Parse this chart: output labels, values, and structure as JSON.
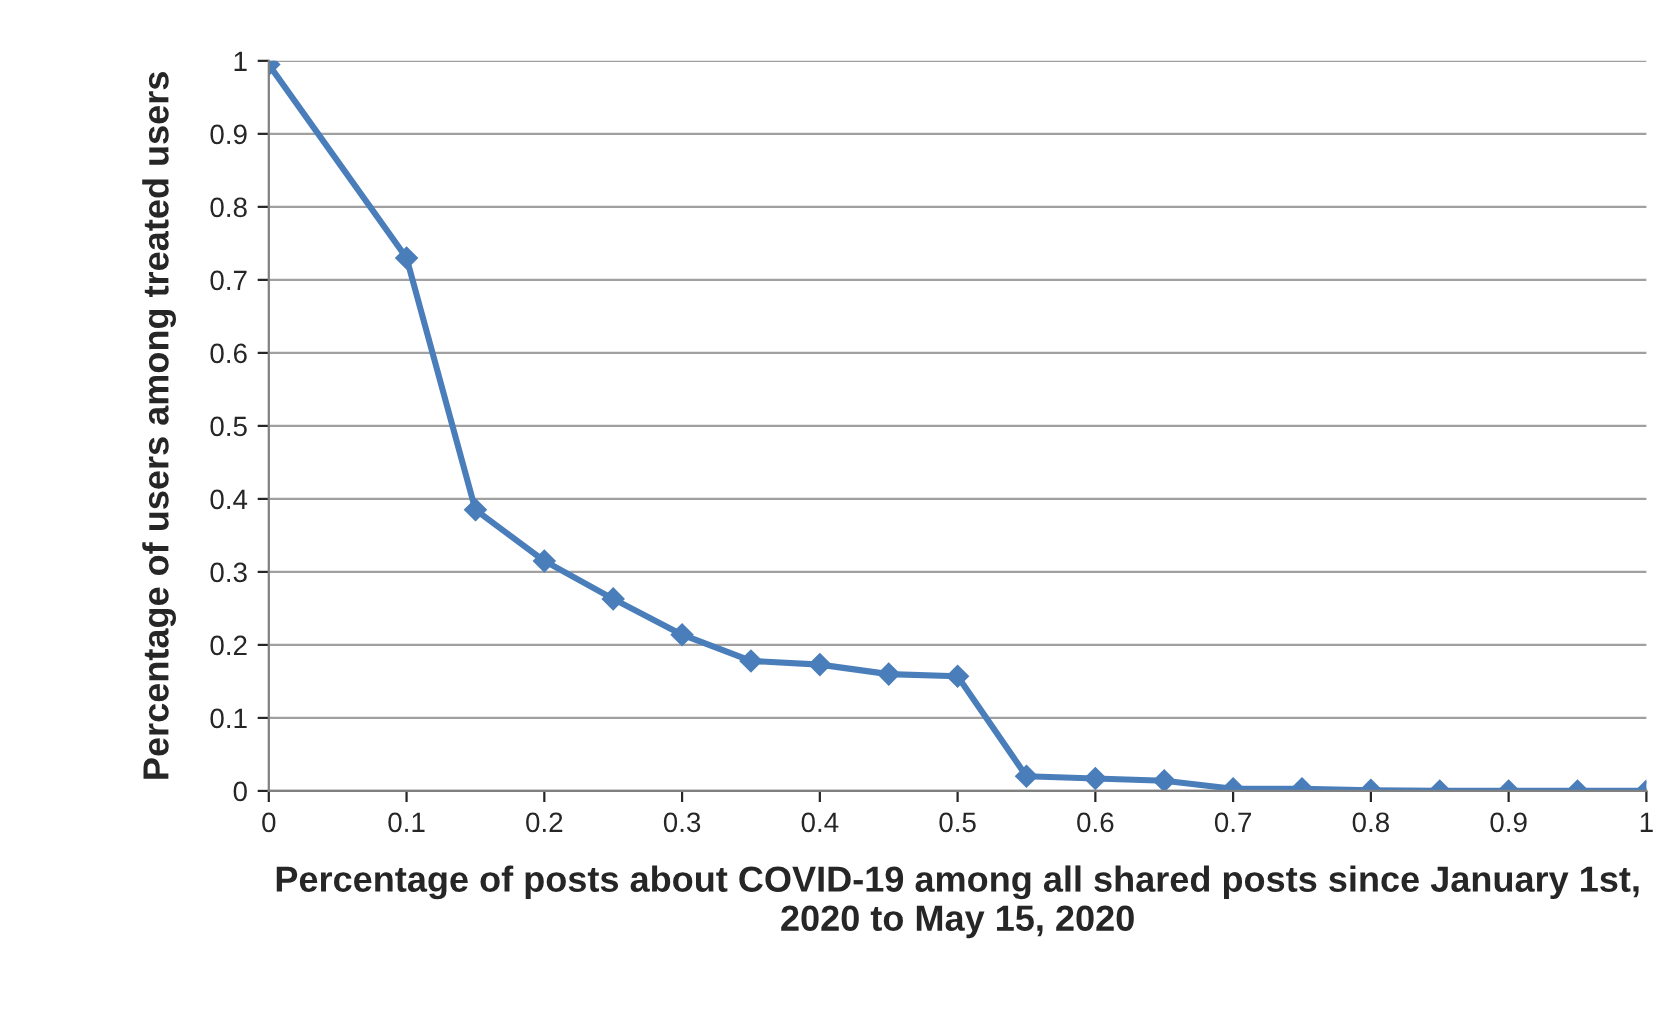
{
  "chart_data": {
    "type": "line",
    "xlabel": "Percentage of posts about COVID-19 among all shared posts since January 1st, 2020 to May 15, 2020",
    "ylabel": "Percentage of users among treated users",
    "x": [
      0,
      0.1,
      0.15,
      0.2,
      0.25,
      0.3,
      0.35,
      0.4,
      0.45,
      0.5,
      0.55,
      0.6,
      0.65,
      0.7,
      0.75,
      0.8,
      0.85,
      0.9,
      0.95,
      1
    ],
    "series": [
      {
        "color": "#4a7ebb",
        "values": [
          0.995,
          0.73,
          0.385,
          0.315,
          0.263,
          0.214,
          0.178,
          0.173,
          0.16,
          0.157,
          0.02,
          0.017,
          0.014,
          0.003,
          0.003,
          0.001,
          0,
          0,
          0,
          0
        ]
      }
    ],
    "xlim": [
      0,
      1
    ],
    "ylim": [
      0,
      1
    ],
    "xticks": [
      0,
      0.1,
      0.2,
      0.3,
      0.4,
      0.5,
      0.6,
      0.7,
      0.8,
      0.9,
      1
    ],
    "yticks": [
      0,
      0.1,
      0.2,
      0.3,
      0.4,
      0.5,
      0.6,
      0.7,
      0.8,
      0.9,
      1
    ],
    "grid": "y",
    "marker": "diamond",
    "line_style": "solid"
  }
}
